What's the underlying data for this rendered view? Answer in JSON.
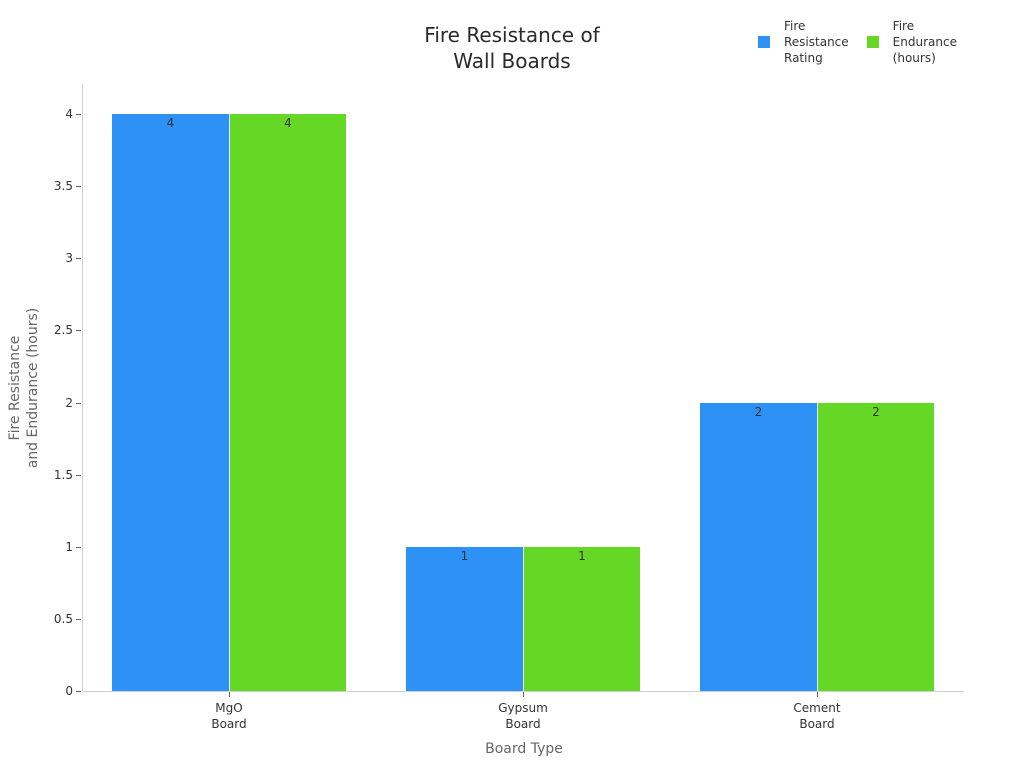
{
  "chart_data": {
    "type": "bar",
    "title": "Fire Resistance of\nWall Boards",
    "xlabel": "Board Type",
    "ylabel": "Fire Resistance\nand Endurance (hours)",
    "categories": [
      "MgO\nBoard",
      "Gypsum\nBoard",
      "Cement\nBoard"
    ],
    "series": [
      {
        "name": "Fire\nResistance\nRating",
        "color": "#2e91f6",
        "values": [
          4,
          1,
          2
        ]
      },
      {
        "name": "Fire\nEndurance\n(hours)",
        "color": "#65d826",
        "values": [
          4,
          1,
          2
        ]
      }
    ],
    "ylim": [
      0,
      4.2
    ],
    "yticks": [
      "0",
      "0.5",
      "1",
      "1.5",
      "2",
      "2.5",
      "3",
      "3.5",
      "4"
    ],
    "grid": false,
    "legend_position": "top-right",
    "data_labels": true
  }
}
